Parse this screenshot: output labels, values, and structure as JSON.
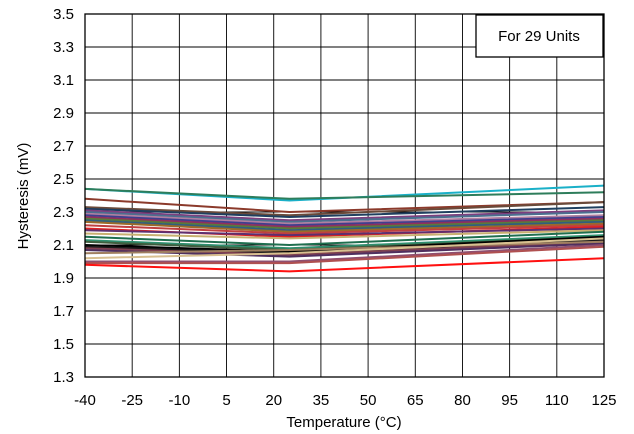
{
  "chart_data": {
    "type": "line",
    "xlabel": "Temperature (°C)",
    "ylabel": "Hysteresis (mV)",
    "annotation": "For 29 Units",
    "x_ticks": [
      "-40",
      "-25",
      "-10",
      "5",
      "20",
      "35",
      "50",
      "65",
      "80",
      "95",
      "110",
      "125"
    ],
    "y_ticks": [
      "1.3",
      "1.5",
      "1.7",
      "1.9",
      "2.1",
      "2.3",
      "2.5",
      "2.7",
      "2.9",
      "3.1",
      "3.3",
      "3.5"
    ],
    "xlim": [
      -40,
      125
    ],
    "ylim": [
      1.3,
      3.5
    ],
    "grid": true,
    "x": [
      -40,
      25,
      125
    ],
    "series": [
      {
        "color": "#1ab0c8",
        "values": [
          2.44,
          2.37,
          2.46
        ]
      },
      {
        "color": "#2e7d5b",
        "values": [
          2.44,
          2.38,
          2.42
        ]
      },
      {
        "color": "#8b3a2b",
        "values": [
          2.38,
          2.3,
          2.36
        ]
      },
      {
        "color": "#6a4a3a",
        "values": [
          2.33,
          2.28,
          2.36
        ]
      },
      {
        "color": "#1f3f5f",
        "values": [
          2.32,
          2.27,
          2.33
        ]
      },
      {
        "color": "#7d3f7f",
        "values": [
          2.31,
          2.25,
          2.31
        ]
      },
      {
        "color": "#4b6f8f",
        "values": [
          2.3,
          2.24,
          2.3
        ]
      },
      {
        "color": "#b07fa0",
        "values": [
          2.29,
          2.23,
          2.28
        ]
      },
      {
        "color": "#3f3f8f",
        "values": [
          2.28,
          2.22,
          2.27
        ]
      },
      {
        "color": "#8f2f5f",
        "values": [
          2.27,
          2.21,
          2.26
        ]
      },
      {
        "color": "#5a7a3a",
        "values": [
          2.26,
          2.2,
          2.25
        ]
      },
      {
        "color": "#2f5f7f",
        "values": [
          2.25,
          2.19,
          2.24
        ]
      },
      {
        "color": "#9a6a2a",
        "values": [
          2.24,
          2.18,
          2.23
        ]
      },
      {
        "color": "#c04040",
        "values": [
          2.22,
          2.17,
          2.22
        ]
      },
      {
        "color": "#e02020",
        "values": [
          2.2,
          2.15,
          2.21
        ]
      },
      {
        "color": "#5f2f6f",
        "values": [
          2.19,
          2.16,
          2.2
        ]
      },
      {
        "color": "#c8b070",
        "values": [
          2.17,
          2.14,
          2.19
        ]
      },
      {
        "color": "#1f6f4f",
        "values": [
          2.15,
          2.1,
          2.18
        ]
      },
      {
        "color": "#2f8f6f",
        "values": [
          2.13,
          2.08,
          2.16
        ]
      },
      {
        "color": "#3f5f3f",
        "values": [
          2.12,
          2.07,
          2.15
        ]
      },
      {
        "color": "#000000",
        "values": [
          2.1,
          2.06,
          2.15
        ]
      },
      {
        "color": "#1a1a1a",
        "values": [
          2.09,
          2.05,
          2.13
        ]
      },
      {
        "color": "#7f3f4f",
        "values": [
          2.08,
          2.04,
          2.12
        ]
      },
      {
        "color": "#4f2f5f",
        "values": [
          2.07,
          2.03,
          2.11
        ]
      },
      {
        "color": "#a08060",
        "values": [
          2.05,
          2.07,
          2.12
        ]
      },
      {
        "color": "#d8c090",
        "values": [
          2.02,
          2.05,
          2.14
        ]
      },
      {
        "color": "#8f4f6f",
        "values": [
          2.0,
          2.0,
          2.1
        ]
      },
      {
        "color": "#b05050",
        "values": [
          1.99,
          1.99,
          2.09
        ]
      },
      {
        "color": "#ff1010",
        "values": [
          1.98,
          1.94,
          2.02
        ]
      }
    ]
  }
}
